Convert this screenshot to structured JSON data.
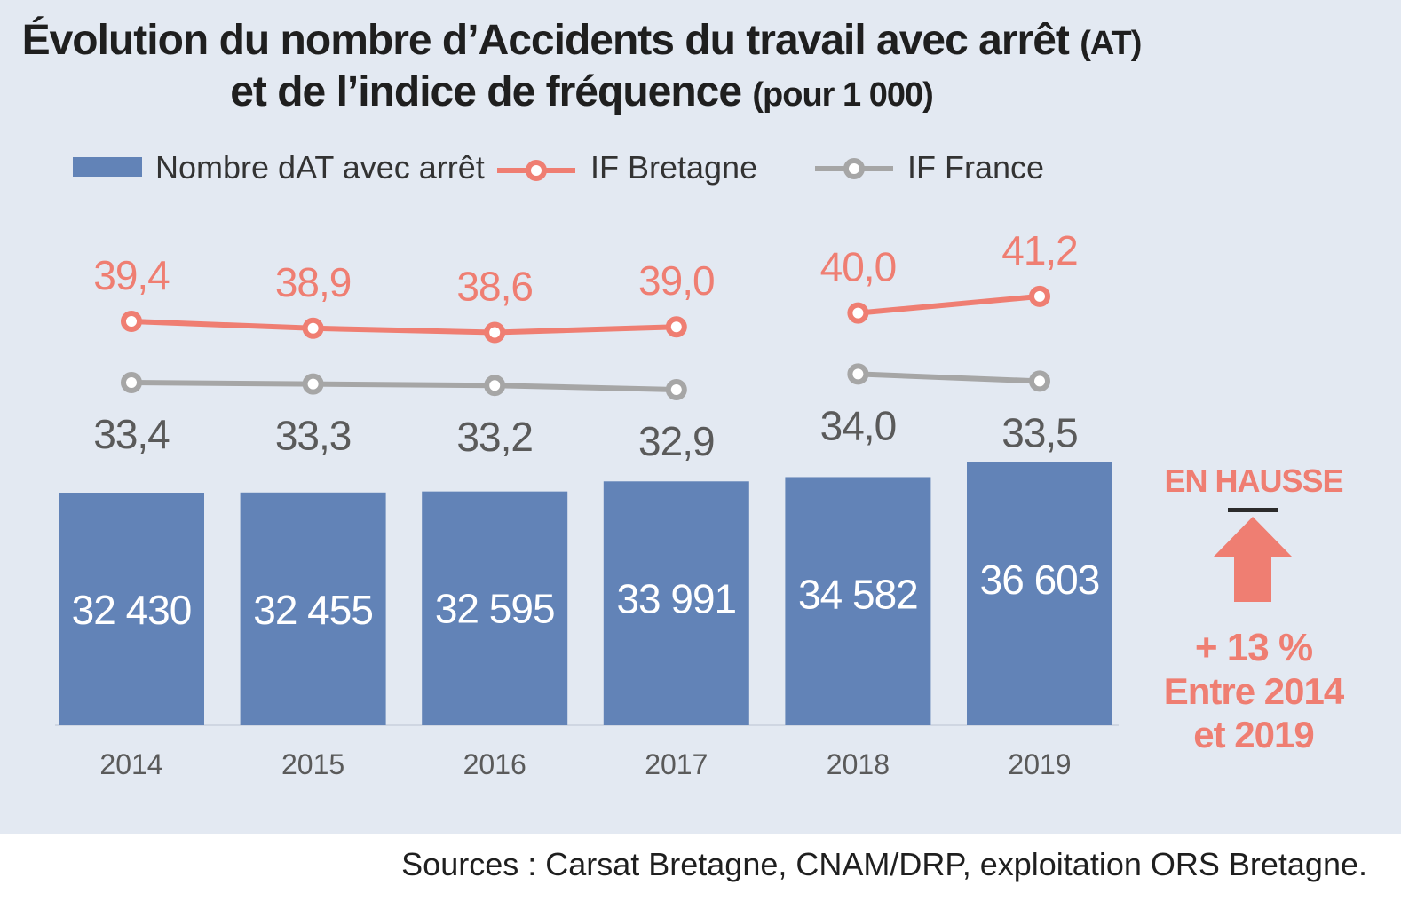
{
  "title": {
    "line1_main": "Évolution du nombre d’Accidents du travail avec arrêt",
    "line1_suffix": "(AT)",
    "line2_main": "et de l’indice de fréquence",
    "line2_suffix": "(pour 1 000)"
  },
  "colors": {
    "background": "#e3e9f2",
    "bar": "#6283b7",
    "if_bretagne": "#ef7e72",
    "if_france": "#a6a6a6",
    "france_label": "#5a5a5a",
    "axis_label": "#5a5a5a",
    "callout": "#ef7e72"
  },
  "chart_data": {
    "type": "bar",
    "categories": [
      "2014",
      "2015",
      "2016",
      "2017",
      "2018",
      "2019"
    ],
    "series": [
      {
        "name": "Nombre dAT avec arrêt",
        "type": "bar",
        "values": [
          32430,
          32455,
          32595,
          33991,
          34582,
          36603
        ],
        "labels": [
          "32 430",
          "32 455",
          "32 595",
          "33 991",
          "34 582",
          "36 603"
        ]
      },
      {
        "name": "IF Bretagne",
        "type": "line",
        "values": [
          39.4,
          38.9,
          38.6,
          39.0,
          40.0,
          41.2
        ],
        "labels": [
          "39,4",
          "38,9",
          "38,6",
          "39,0",
          "40,0",
          "41,2"
        ]
      },
      {
        "name": "IF France",
        "type": "line",
        "values": [
          33.4,
          33.3,
          33.2,
          32.9,
          34.0,
          33.5
        ],
        "labels": [
          "33,4",
          "33,3",
          "33,2",
          "32,9",
          "34,0",
          "33,5"
        ]
      }
    ],
    "line_break_after": "2017",
    "legend_position": "top",
    "grid": false
  },
  "callout": {
    "heading": "EN HAUSSE",
    "value": "+ 13 %",
    "text_line1": "Entre 2014",
    "text_line2": "et 2019",
    "icon": "up-arrow-icon"
  },
  "source": "Sources : Carsat Bretagne, CNAM/DRP, exploitation ORS Bretagne."
}
